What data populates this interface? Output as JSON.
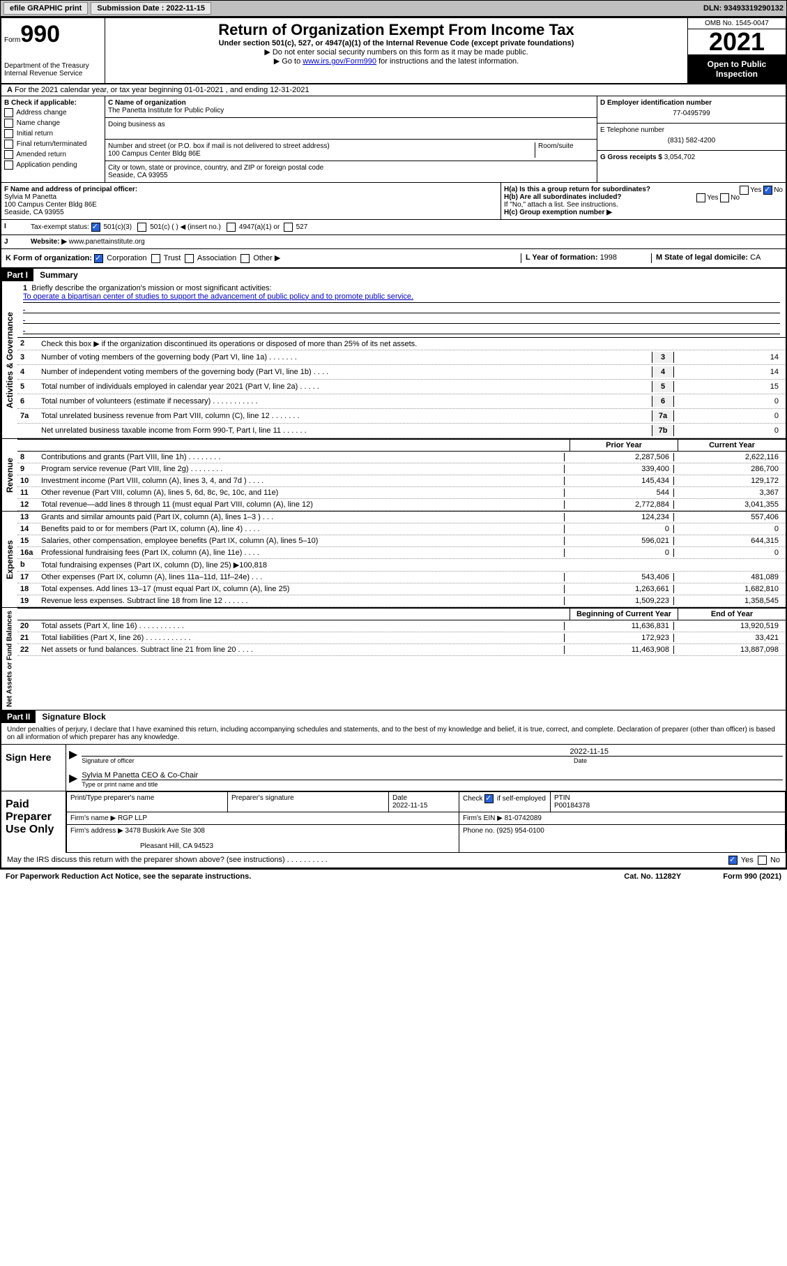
{
  "topbar": {
    "efile_label": "efile GRAPHIC print",
    "submission_label": "Submission Date : 2022-11-15",
    "dln": "DLN: 93493319290132"
  },
  "header": {
    "form_prefix": "Form",
    "form_number": "990",
    "title": "Return of Organization Exempt From Income Tax",
    "subtitle": "Under section 501(c), 527, or 4947(a)(1) of the Internal Revenue Code (except private foundations)",
    "note1": "▶ Do not enter social security numbers on this form as it may be made public.",
    "note2_pre": "▶ Go to ",
    "note2_link": "www.irs.gov/Form990",
    "note2_post": " for instructions and the latest information.",
    "dept": "Department of the Treasury",
    "irs": "Internal Revenue Service",
    "omb": "OMB No. 1545-0047",
    "tax_year": "2021",
    "open_public": "Open to Public Inspection"
  },
  "row_a": {
    "text_a": "A",
    "text": "For the 2021 calendar year, or tax year beginning 01-01-2021   , and ending 12-31-2021"
  },
  "section_b": {
    "b_label": "B Check if applicable:",
    "address_change": "Address change",
    "name_change": "Name change",
    "initial_return": "Initial return",
    "final_return": "Final return/terminated",
    "amended_return": "Amended return",
    "application_pending": "Application pending",
    "c_label": "C Name of organization",
    "org_name": "The Panetta Institute for Public Policy",
    "dba_label": "Doing business as",
    "addr_label": "Number and street (or P.O. box if mail is not delivered to street address)",
    "room_label": "Room/suite",
    "addr": "100 Campus Center Bldg 86E",
    "city_label": "City or town, state or province, country, and ZIP or foreign postal code",
    "city": "Seaside, CA  93955",
    "d_label": "D Employer identification number",
    "ein": "77-0495799",
    "e_label": "E Telephone number",
    "phone": "(831) 582-4200",
    "g_label": "G Gross receipts $",
    "gross": "3,054,702"
  },
  "section_f": {
    "f_label": "F Name and address of principal officer:",
    "officer_name": "Sylvia M Panetta",
    "officer_addr1": "100 Campus Center Bldg 86E",
    "officer_addr2": "Seaside, CA  93955",
    "ha_label": "H(a)  Is this a group return for subordinates?",
    "hb_label": "H(b)  Are all subordinates included?",
    "hb_note": "If \"No,\" attach a list. See instructions.",
    "hc_label": "H(c)  Group exemption number ▶",
    "yes": "Yes",
    "no": "No"
  },
  "row_i": {
    "i_label": "I",
    "tax_exempt": "Tax-exempt status:",
    "c501c3": "501(c)(3)",
    "c501c": "501(c) (  ) ◀ (insert no.)",
    "c4947": "4947(a)(1) or",
    "c527": "527"
  },
  "row_j": {
    "j_label": "J",
    "website_label": "Website: ▶",
    "website": "www.panettainstitute.org"
  },
  "row_k": {
    "k_label": "K Form of organization:",
    "corp": "Corporation",
    "trust": "Trust",
    "assoc": "Association",
    "other": "Other ▶",
    "l_label": "L Year of formation: ",
    "l_val": "1998",
    "m_label": "M State of legal domicile: ",
    "m_val": "CA"
  },
  "part1": {
    "header": "Part I",
    "title": "Summary",
    "mission_label": "Briefly describe the organization's mission or most significant activities:",
    "mission": "To operate a bipartisan center of studies to support the advancement of public policy and to promote public service.",
    "line2": "Check this box ▶       if the organization discontinued its operations or disposed of more than 25% of its net assets.",
    "sidelab_gov": "Activities & Governance",
    "sidelab_rev": "Revenue",
    "sidelab_exp": "Expenses",
    "sidelab_net": "Net Assets or Fund Balances",
    "lines_single": [
      {
        "n": "3",
        "lbl": "Number of voting members of the governing body (Part VI, line 1a)   .    .    .    .    .    .    .",
        "box": "3",
        "val": "14"
      },
      {
        "n": "4",
        "lbl": "Number of independent voting members of the governing body (Part VI, line 1b)   .    .    .    .",
        "box": "4",
        "val": "14"
      },
      {
        "n": "5",
        "lbl": "Total number of individuals employed in calendar year 2021 (Part V, line 2a)    .    .    .    .    .",
        "box": "5",
        "val": "15"
      },
      {
        "n": "6",
        "lbl": "Total number of volunteers (estimate if necessary)    .    .    .    .    .    .    .    .    .    .    .",
        "box": "6",
        "val": "0"
      },
      {
        "n": "7a",
        "lbl": "Total unrelated business revenue from Part VIII, column (C), line 12   .    .    .    .    .    .    .",
        "box": "7a",
        "val": "0"
      },
      {
        "n": "",
        "lbl": "Net unrelated business taxable income from Form 990-T, Part I, line 11   .    .    .    .    .    .",
        "box": "7b",
        "val": "0"
      }
    ],
    "head_prior": "Prior Year",
    "head_current": "Current Year",
    "lines_rev": [
      {
        "n": "8",
        "lbl": "Contributions and grants (Part VIII, line 1h)   .    .    .    .    .    .    .    .",
        "p": "2,287,506",
        "c": "2,622,116"
      },
      {
        "n": "9",
        "lbl": "Program service revenue (Part VIII, line 2g)   .    .    .    .    .    .    .    .",
        "p": "339,400",
        "c": "286,700"
      },
      {
        "n": "10",
        "lbl": "Investment income (Part VIII, column (A), lines 3, 4, and 7d )   .    .    .    .",
        "p": "145,434",
        "c": "129,172"
      },
      {
        "n": "11",
        "lbl": "Other revenue (Part VIII, column (A), lines 5, 6d, 8c, 9c, 10c, and 11e)",
        "p": "544",
        "c": "3,367"
      },
      {
        "n": "12",
        "lbl": "Total revenue—add lines 8 through 11 (must equal Part VIII, column (A), line 12)",
        "p": "2,772,884",
        "c": "3,041,355"
      }
    ],
    "lines_exp": [
      {
        "n": "13",
        "lbl": "Grants and similar amounts paid (Part IX, column (A), lines 1–3 )   .    .    .",
        "p": "124,234",
        "c": "557,406"
      },
      {
        "n": "14",
        "lbl": "Benefits paid to or for members (Part IX, column (A), line 4)   .    .    .    .",
        "p": "0",
        "c": "0"
      },
      {
        "n": "15",
        "lbl": "Salaries, other compensation, employee benefits (Part IX, column (A), lines 5–10)",
        "p": "596,021",
        "c": "644,315"
      },
      {
        "n": "16a",
        "lbl": "Professional fundraising fees (Part IX, column (A), line 11e)   .    .    .    .",
        "p": "0",
        "c": "0"
      },
      {
        "n": "b",
        "lbl": "Total fundraising expenses (Part IX, column (D), line 25) ▶100,818",
        "p": "",
        "c": ""
      },
      {
        "n": "17",
        "lbl": "Other expenses (Part IX, column (A), lines 11a–11d, 11f–24e)   .    .    .",
        "p": "543,406",
        "c": "481,089"
      },
      {
        "n": "18",
        "lbl": "Total expenses. Add lines 13–17 (must equal Part IX, column (A), line 25)",
        "p": "1,263,661",
        "c": "1,682,810"
      },
      {
        "n": "19",
        "lbl": "Revenue less expenses. Subtract line 18 from line 12   .    .    .    .    .    .",
        "p": "1,509,223",
        "c": "1,358,545"
      }
    ],
    "head_begin": "Beginning of Current Year",
    "head_end": "End of Year",
    "lines_net": [
      {
        "n": "20",
        "lbl": "Total assets (Part X, line 16)    .    .    .    .    .    .    .    .    .    .    .",
        "p": "11,636,831",
        "c": "13,920,519"
      },
      {
        "n": "21",
        "lbl": "Total liabilities (Part X, line 26)   .    .    .    .    .    .    .    .    .    .    .",
        "p": "172,923",
        "c": "33,421"
      },
      {
        "n": "22",
        "lbl": "Net assets or fund balances. Subtract line 21 from line 20   .    .    .    .",
        "p": "11,463,908",
        "c": "13,887,098"
      }
    ]
  },
  "part2": {
    "header": "Part II",
    "title": "Signature Block",
    "declaration": "Under penalties of perjury, I declare that I have examined this return, including accompanying schedules and statements, and to the best of my knowledge and belief, it is true, correct, and complete. Declaration of preparer (other than officer) is based on all information of which preparer has any knowledge.",
    "sign_here": "Sign Here",
    "sig_officer": "Signature of officer",
    "sig_date_val": "2022-11-15",
    "sig_date": "Date",
    "officer_name_title": "Sylvia M Panetta CEO & Co-Chair",
    "type_name": "Type or print name and title",
    "paid_prep": "Paid Preparer Use Only",
    "print_name": "Print/Type preparer's name",
    "prep_sig": "Preparer's signature",
    "date_hdr": "Date",
    "date_val": "2022-11-15",
    "check_self": "Check          if self-employed",
    "ptin_hdr": "PTIN",
    "ptin": "P00184378",
    "firm_name_lbl": "Firm's name    ▶",
    "firm_name": "RGP LLP",
    "firm_ein_lbl": "Firm's EIN ▶",
    "firm_ein": "81-0742089",
    "firm_addr_lbl": "Firm's address ▶",
    "firm_addr1": "3478 Buskirk Ave Ste 308",
    "firm_addr2": "Pleasant Hill, CA  94523",
    "phone_lbl": "Phone no.",
    "phone": "(925) 954-0100",
    "discuss": "May the IRS discuss this return with the preparer shown above? (see instructions)   .    .    .    .    .    .    .    .    .    .",
    "yes": "Yes",
    "no": "No"
  },
  "footer": {
    "paperwork": "For Paperwork Reduction Act Notice, see the separate instructions.",
    "cat": "Cat. No. 11282Y",
    "form": "Form 990 (2021)"
  }
}
